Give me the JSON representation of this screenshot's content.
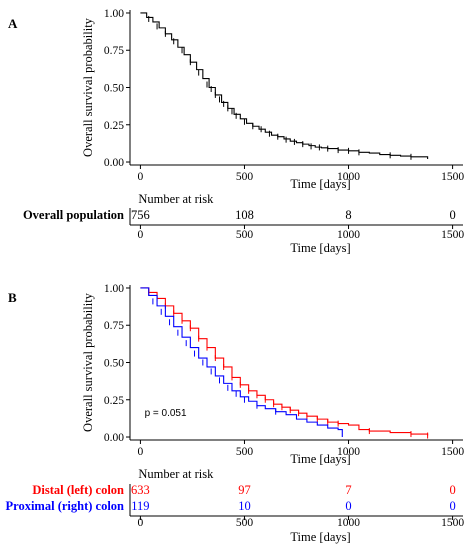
{
  "chart_data": [
    {
      "type": "line",
      "panel_label": "A",
      "title": "",
      "xlabel": "Time [days]",
      "ylabel": "Overall survival probability",
      "xlim": [
        -50,
        1550
      ],
      "ylim": [
        -0.02,
        1.02
      ],
      "x_ticks": [
        0,
        500,
        1000,
        1500
      ],
      "y_ticks": [
        0.0,
        0.25,
        0.5,
        0.75,
        1.0
      ],
      "y_tick_labels": [
        "0.00",
        "0.25",
        "0.50",
        "0.75",
        "1.00"
      ],
      "grid": false,
      "legend": "none",
      "series": [
        {
          "color": "#000000",
          "x": [
            0,
            30,
            60,
            90,
            120,
            150,
            180,
            210,
            240,
            270,
            300,
            330,
            360,
            390,
            420,
            450,
            480,
            510,
            540,
            570,
            600,
            630,
            660,
            690,
            720,
            750,
            780,
            810,
            840,
            870,
            900,
            950,
            1000,
            1050,
            1100,
            1150,
            1200,
            1250,
            1300,
            1380
          ],
          "y": [
            1.0,
            0.97,
            0.94,
            0.9,
            0.86,
            0.82,
            0.77,
            0.72,
            0.67,
            0.62,
            0.56,
            0.5,
            0.45,
            0.4,
            0.36,
            0.32,
            0.29,
            0.26,
            0.24,
            0.22,
            0.2,
            0.18,
            0.17,
            0.155,
            0.14,
            0.13,
            0.12,
            0.11,
            0.1,
            0.095,
            0.09,
            0.08,
            0.075,
            0.065,
            0.06,
            0.05,
            0.045,
            0.04,
            0.035,
            0.02
          ],
          "censor_x": [
            40,
            80,
            120,
            160,
            200,
            240,
            280,
            320,
            340,
            360,
            380,
            400,
            420,
            440,
            460,
            500,
            540,
            580,
            620,
            660,
            700,
            740,
            780,
            820,
            860,
            900,
            950,
            1000,
            1050,
            1200,
            1300
          ],
          "censor_y": [
            0.96,
            0.91,
            0.86,
            0.81,
            0.75,
            0.67,
            0.6,
            0.52,
            0.49,
            0.45,
            0.42,
            0.39,
            0.36,
            0.34,
            0.31,
            0.27,
            0.24,
            0.22,
            0.19,
            0.17,
            0.15,
            0.135,
            0.12,
            0.105,
            0.098,
            0.09,
            0.08,
            0.075,
            0.065,
            0.045,
            0.035
          ]
        }
      ],
      "risk_table": {
        "header": "Number at risk",
        "xlabel": "Time [days]",
        "x_ticks": [
          0,
          500,
          1000,
          1500
        ],
        "rows": [
          {
            "label": "Overall population",
            "color": "#000000",
            "values": [
              "756",
              "108",
              "8",
              "0"
            ]
          }
        ]
      }
    },
    {
      "type": "line",
      "panel_label": "B",
      "title": "",
      "xlabel": "Time [days]",
      "ylabel": "Overall survival probability",
      "xlim": [
        -50,
        1550
      ],
      "ylim": [
        -0.02,
        1.02
      ],
      "x_ticks": [
        0,
        500,
        1000,
        1500
      ],
      "y_ticks": [
        0.0,
        0.25,
        0.5,
        0.75,
        1.0
      ],
      "y_tick_labels": [
        "0.00",
        "0.25",
        "0.50",
        "0.75",
        "1.00"
      ],
      "grid": false,
      "legend": "none",
      "annotation": "p = 0.051",
      "series": [
        {
          "color": "#ff0000",
          "x": [
            0,
            40,
            80,
            120,
            160,
            200,
            240,
            280,
            320,
            360,
            400,
            440,
            480,
            520,
            560,
            600,
            640,
            680,
            720,
            760,
            800,
            850,
            900,
            950,
            1000,
            1050,
            1100,
            1200,
            1300,
            1380
          ],
          "y": [
            1.0,
            0.97,
            0.93,
            0.88,
            0.83,
            0.78,
            0.73,
            0.66,
            0.6,
            0.53,
            0.47,
            0.4,
            0.35,
            0.31,
            0.28,
            0.25,
            0.22,
            0.2,
            0.18,
            0.16,
            0.14,
            0.12,
            0.1,
            0.09,
            0.08,
            0.05,
            0.04,
            0.03,
            0.02,
            0.01
          ],
          "censor_x": [
            40,
            80,
            120,
            160,
            200,
            240,
            280,
            320,
            360,
            400,
            440,
            480,
            520,
            560,
            600,
            640,
            680,
            720,
            760,
            800,
            850,
            900,
            950,
            1100,
            1300,
            1380
          ],
          "censor_y": [
            0.97,
            0.93,
            0.88,
            0.83,
            0.78,
            0.73,
            0.66,
            0.6,
            0.53,
            0.47,
            0.4,
            0.35,
            0.31,
            0.28,
            0.25,
            0.22,
            0.2,
            0.18,
            0.16,
            0.14,
            0.12,
            0.1,
            0.09,
            0.04,
            0.02,
            0.01
          ]
        },
        {
          "color": "#0000ff",
          "x": [
            0,
            40,
            80,
            120,
            160,
            200,
            240,
            280,
            320,
            360,
            400,
            440,
            480,
            520,
            560,
            600,
            650,
            700,
            750,
            800,
            850,
            900,
            950,
            970
          ],
          "y": [
            1.0,
            0.95,
            0.88,
            0.81,
            0.74,
            0.67,
            0.6,
            0.53,
            0.47,
            0.41,
            0.36,
            0.31,
            0.27,
            0.24,
            0.21,
            0.19,
            0.17,
            0.15,
            0.12,
            0.1,
            0.08,
            0.06,
            0.05,
            0.0
          ],
          "censor_x": [
            60,
            100,
            140,
            180,
            220,
            260,
            300,
            340,
            380,
            420,
            460,
            500,
            560,
            650
          ],
          "censor_y": [
            0.91,
            0.84,
            0.77,
            0.7,
            0.63,
            0.56,
            0.5,
            0.44,
            0.38,
            0.33,
            0.29,
            0.25,
            0.21,
            0.17
          ]
        }
      ],
      "risk_table": {
        "header": "Number at risk",
        "xlabel": "Time [days]",
        "x_ticks": [
          0,
          500,
          1000,
          1500
        ],
        "rows": [
          {
            "label": "Distal (left) colon",
            "color": "#ff0000",
            "values": [
              "633",
              "97",
              "7",
              "0"
            ]
          },
          {
            "label": "Proximal (right) colon",
            "color": "#0000ff",
            "values": [
              "119",
              "10",
              "0",
              "0"
            ]
          }
        ]
      }
    }
  ]
}
